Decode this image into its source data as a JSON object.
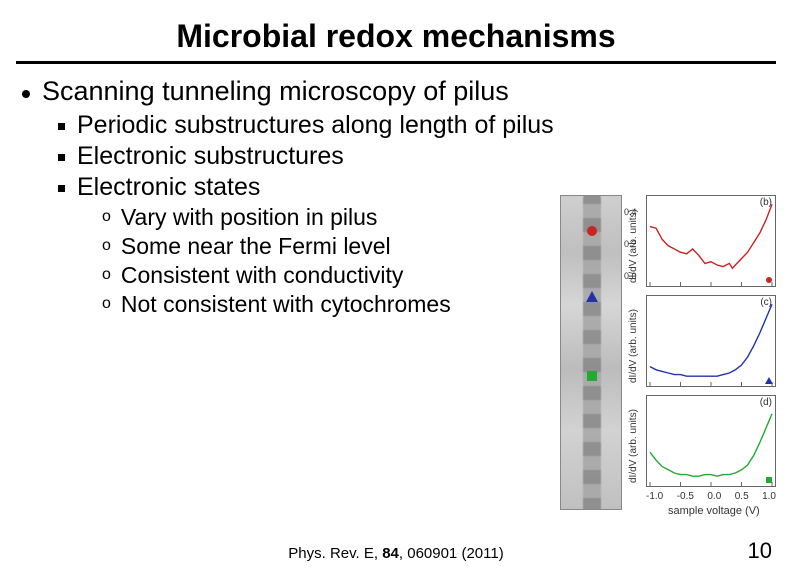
{
  "title": "Microbial redox mechanisms",
  "bullets": {
    "main": "Scanning tunneling microscopy of pilus",
    "subs": [
      "Periodic substructures along length of pilus",
      "Electronic substructures",
      "Electronic states"
    ],
    "subsubs": [
      "Vary with position in pilus",
      "Some near the Fermi level",
      "Consistent with conductivity",
      "Not consistent with cytochromes"
    ]
  },
  "citation": {
    "prefix": "Phys. Rev. E, ",
    "volume": "84",
    "suffix": ", 060901 (2011)"
  },
  "page_number": "10",
  "figure": {
    "stm": {
      "markers": [
        {
          "type": "circle",
          "color": "#cc2222",
          "y": 30
        },
        {
          "type": "triangle",
          "color": "#2233aa",
          "y": 95
        },
        {
          "type": "square",
          "color": "#22aa33",
          "y": 175
        }
      ]
    },
    "plots": {
      "ylabel": "dI/dV (arb. units)",
      "xlabel": "sample voltage (V)",
      "xlim": [
        -1.0,
        1.0
      ],
      "xticks": [
        "-1.0",
        "-0.5",
        "0.0",
        "0.5",
        "1.0"
      ],
      "panel_bg": "#ffffff",
      "axis_color": "#666666",
      "panels": [
        {
          "label": "(b)",
          "color": "#cc2222",
          "line_width": 1.4,
          "ylim": [
            0.0,
            0.5
          ],
          "yticks": [
            "0.0",
            "0.2",
            "0.4"
          ],
          "marker_type": "circle",
          "points": [
            [
              -1.0,
              0.34
            ],
            [
              -0.9,
              0.33
            ],
            [
              -0.8,
              0.26
            ],
            [
              -0.7,
              0.22
            ],
            [
              -0.6,
              0.2
            ],
            [
              -0.5,
              0.18
            ],
            [
              -0.4,
              0.17
            ],
            [
              -0.3,
              0.2
            ],
            [
              -0.2,
              0.16
            ],
            [
              -0.1,
              0.11
            ],
            [
              0.0,
              0.12
            ],
            [
              0.1,
              0.1
            ],
            [
              0.2,
              0.09
            ],
            [
              0.3,
              0.11
            ],
            [
              0.35,
              0.08
            ],
            [
              0.4,
              0.1
            ],
            [
              0.5,
              0.14
            ],
            [
              0.6,
              0.18
            ],
            [
              0.7,
              0.24
            ],
            [
              0.8,
              0.3
            ],
            [
              0.9,
              0.38
            ],
            [
              1.0,
              0.48
            ]
          ]
        },
        {
          "label": "(c)",
          "color": "#2233aa",
          "line_width": 1.4,
          "ylim": [
            0.0,
            0.5
          ],
          "yticks": [],
          "marker_type": "triangle",
          "points": [
            [
              -1.0,
              0.09
            ],
            [
              -0.9,
              0.07
            ],
            [
              -0.8,
              0.06
            ],
            [
              -0.7,
              0.05
            ],
            [
              -0.6,
              0.04
            ],
            [
              -0.5,
              0.04
            ],
            [
              -0.4,
              0.03
            ],
            [
              -0.3,
              0.03
            ],
            [
              -0.2,
              0.03
            ],
            [
              -0.1,
              0.03
            ],
            [
              0.0,
              0.03
            ],
            [
              0.1,
              0.03
            ],
            [
              0.2,
              0.04
            ],
            [
              0.3,
              0.05
            ],
            [
              0.4,
              0.07
            ],
            [
              0.5,
              0.1
            ],
            [
              0.6,
              0.15
            ],
            [
              0.7,
              0.22
            ],
            [
              0.8,
              0.3
            ],
            [
              0.9,
              0.39
            ],
            [
              1.0,
              0.48
            ]
          ]
        },
        {
          "label": "(d)",
          "color": "#22aa33",
          "line_width": 1.4,
          "ylim": [
            0.0,
            0.5
          ],
          "yticks": [],
          "marker_type": "square",
          "points": [
            [
              -1.0,
              0.18
            ],
            [
              -0.9,
              0.13
            ],
            [
              -0.8,
              0.09
            ],
            [
              -0.7,
              0.07
            ],
            [
              -0.6,
              0.05
            ],
            [
              -0.5,
              0.04
            ],
            [
              -0.4,
              0.04
            ],
            [
              -0.3,
              0.03
            ],
            [
              -0.2,
              0.03
            ],
            [
              -0.1,
              0.04
            ],
            [
              0.0,
              0.04
            ],
            [
              0.1,
              0.03
            ],
            [
              0.2,
              0.04
            ],
            [
              0.3,
              0.04
            ],
            [
              0.4,
              0.05
            ],
            [
              0.5,
              0.07
            ],
            [
              0.6,
              0.1
            ],
            [
              0.7,
              0.16
            ],
            [
              0.8,
              0.24
            ],
            [
              0.9,
              0.33
            ],
            [
              1.0,
              0.42
            ]
          ]
        }
      ]
    }
  }
}
